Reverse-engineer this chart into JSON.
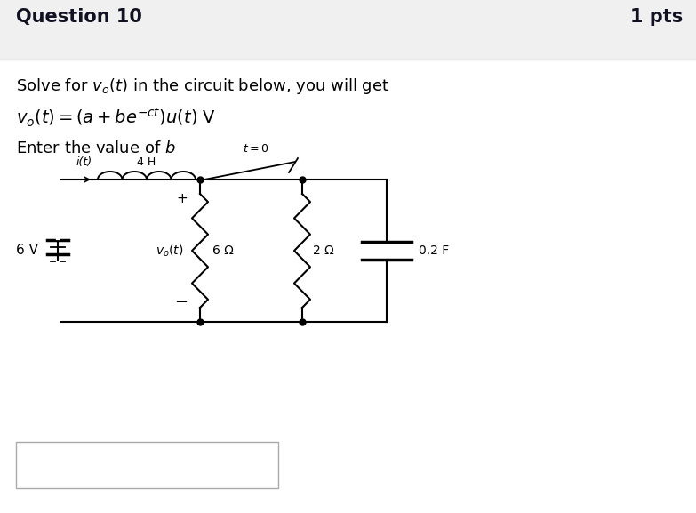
{
  "title": "Question 10",
  "pts": "1 pts",
  "line1": "Solve for $v_o(t)$ in the circuit below, you will get",
  "line2": "$v_o(t) = (a + be^{-ct})u(t)$ V",
  "line3": "Enter the value of $b$",
  "bg_color": "#f0f0f0",
  "body_bg": "#ffffff",
  "text_color": "#111111",
  "title_fontsize": 15,
  "body_fontsize": 13,
  "circuit_labels": {
    "inductor": "4 H",
    "current": "i(t)",
    "voltage_src": "6 V",
    "resistor1": "6 Ω",
    "vo_label": "v₀(t)",
    "switch_label": "t = 0",
    "resistor2": "2 Ω",
    "capacitor": "0.2 F",
    "plus": "+",
    "minus": "−"
  }
}
